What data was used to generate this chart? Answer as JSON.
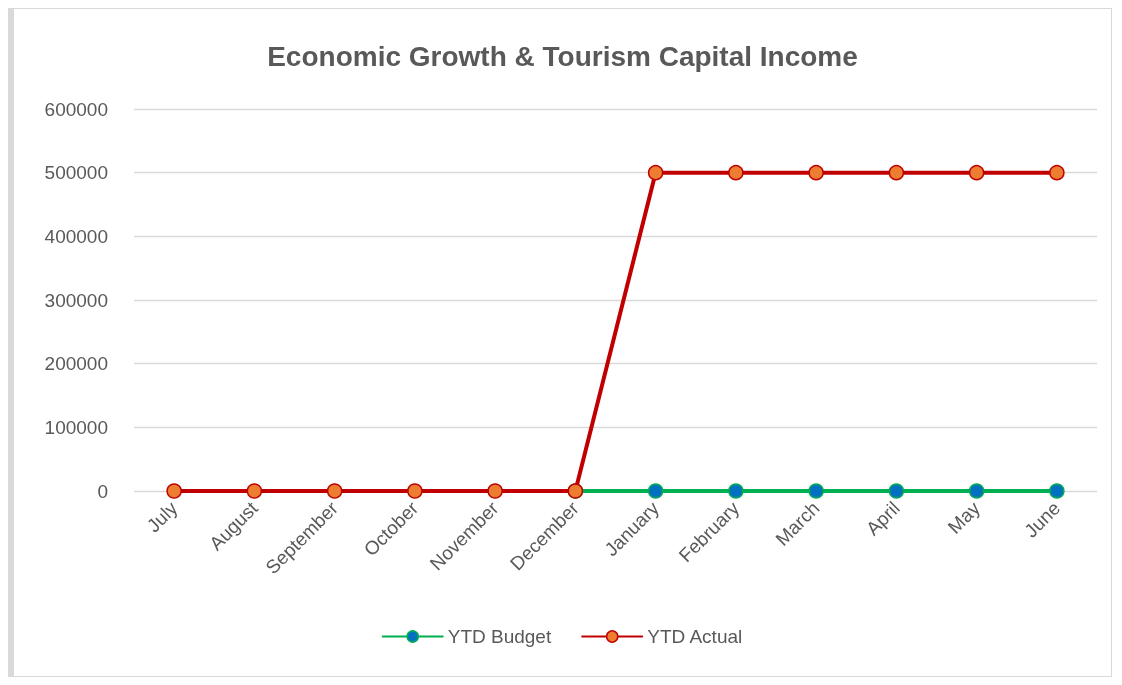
{
  "chart_data": {
    "type": "line",
    "title": "Economic Growth & Tourism Capital Income",
    "categories": [
      "July",
      "August",
      "September",
      "October",
      "November",
      "December",
      "January",
      "February",
      "March",
      "April",
      "May",
      "June"
    ],
    "series": [
      {
        "name": "YTD Budget",
        "color": "#00b050",
        "values": [
          null,
          null,
          null,
          null,
          null,
          0,
          0,
          0,
          0,
          0,
          0,
          0
        ]
      },
      {
        "name": "YTD Actual",
        "color": "#c00000",
        "values": [
          0,
          0,
          0,
          0,
          0,
          0,
          500000,
          500000,
          500000,
          500000,
          500000,
          500000
        ]
      }
    ],
    "ylim": [
      0,
      600000
    ],
    "yticks": [
      0,
      100000,
      200000,
      300000,
      400000,
      500000,
      600000
    ],
    "grid": "y",
    "legend": "bottom",
    "marker": "circle",
    "line_style": "solid"
  }
}
